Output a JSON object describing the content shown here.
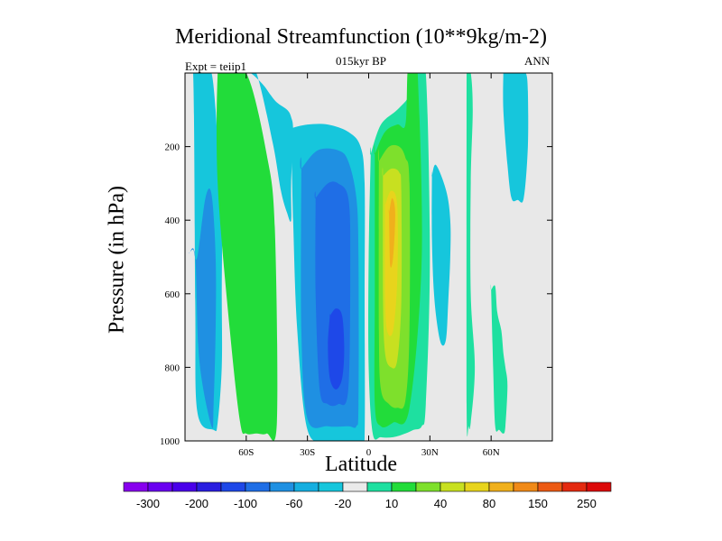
{
  "chart_data": {
    "type": "heatmap",
    "title": "Meridional Streamfunction (10**9kg/m-2)",
    "subtitle": "015kyr BP",
    "left_annotation": "Expt = teiip1",
    "right_annotation": "ANN",
    "xlabel": "Latitude",
    "ylabel": "Pressure (in hPa)",
    "xlim": [
      -90,
      90
    ],
    "ylim": [
      1000,
      0
    ],
    "x_ticks": [
      {
        "value": -60,
        "label": "60S"
      },
      {
        "value": -30,
        "label": "30S"
      },
      {
        "value": 0,
        "label": "0"
      },
      {
        "value": 30,
        "label": "30N"
      },
      {
        "value": 60,
        "label": "60N"
      }
    ],
    "y_ticks": [
      {
        "value": 200,
        "label": "200"
      },
      {
        "value": 400,
        "label": "400"
      },
      {
        "value": 600,
        "label": "600"
      },
      {
        "value": 800,
        "label": "800"
      },
      {
        "value": 1000,
        "label": "1000"
      }
    ],
    "colorbar": {
      "labels": [
        "-300",
        "-200",
        "-100",
        "-60",
        "-20",
        "10",
        "40",
        "80",
        "150",
        "250"
      ],
      "colors": [
        "#8800ee",
        "#6a00f0",
        "#4a00ea",
        "#2a1ee0",
        "#1e48e8",
        "#1f6ee6",
        "#1f90e2",
        "#15aee0",
        "#16c6dc",
        "#eaeaea",
        "#1ee0a0",
        "#22dc3a",
        "#7ee02c",
        "#c8e020",
        "#e8d41c",
        "#f0b01c",
        "#f08a18",
        "#ec5a14",
        "#e42a10",
        "#dc0a0a"
      ]
    },
    "background_color": "#e8e8e8",
    "contours": [
      {
        "level": "-20",
        "color": "#16c6dc",
        "lat": [
          -89,
          -86,
          -85,
          -84,
          -76,
          -74,
          -72,
          -72,
          -72,
          -74,
          -75,
          -77,
          -80,
          -86,
          -89
        ],
        "p": [
          0,
          0,
          620,
          920,
          970,
          950,
          800,
          600,
          400,
          200,
          100,
          0,
          0,
          0,
          0
        ]
      },
      {
        "level": "-60",
        "color": "#1f90e2",
        "lat": [
          -88,
          -85,
          -83,
          -77,
          -76,
          -75,
          -75,
          -77,
          -80,
          -84,
          -86,
          -88
        ],
        "p": [
          490,
          500,
          780,
          960,
          900,
          700,
          500,
          330,
          340,
          500,
          480,
          490
        ]
      },
      {
        "level": "40",
        "color": "#22dc3a",
        "lat": [
          -74,
          -72,
          -60,
          -50,
          -46,
          -45,
          -50,
          -55,
          -60,
          -63,
          -68,
          -74
        ],
        "p": [
          0,
          0,
          0,
          220,
          420,
          950,
          980,
          980,
          980,
          950,
          700,
          300
        ]
      },
      {
        "level": "-20",
        "color": "#16c6dc",
        "lat": [
          -66,
          -60,
          -55,
          -47,
          -43,
          -40,
          -38,
          -38,
          -37,
          -38,
          -40,
          -45,
          -48,
          -52,
          -58,
          -62,
          -66
        ],
        "p": [
          0,
          0,
          0,
          190,
          320,
          380,
          400,
          300,
          160,
          120,
          100,
          80,
          60,
          30,
          0,
          0,
          0
        ]
      },
      {
        "level": "-20",
        "color": "#16c6dc",
        "lat": [
          -38,
          -30,
          -20,
          -10,
          -4,
          -2,
          -2,
          -2,
          -4,
          -6,
          -10,
          -20,
          -30,
          -35,
          -37,
          -38
        ],
        "p": [
          150,
          140,
          140,
          160,
          200,
          300,
          600,
          990,
          1000,
          1000,
          1000,
          1000,
          970,
          700,
          400,
          150
        ]
      },
      {
        "level": "-60",
        "color": "#1f90e2",
        "lat": [
          -33,
          -25,
          -15,
          -10,
          -6,
          -5,
          -5,
          -6,
          -10,
          -20,
          -30,
          -33,
          -33
        ],
        "p": [
          260,
          210,
          210,
          240,
          340,
          500,
          900,
          960,
          960,
          960,
          940,
          700,
          260
        ]
      },
      {
        "level": "-100",
        "color": "#1f6ee6",
        "lat": [
          -26,
          -20,
          -15,
          -10,
          -9,
          -10,
          -15,
          -20,
          -24,
          -26,
          -26
        ],
        "p": [
          340,
          300,
          300,
          340,
          500,
          860,
          900,
          900,
          860,
          600,
          340
        ]
      },
      {
        "level": "-200",
        "color": "#1e48e8",
        "lat": [
          -19,
          -16,
          -13,
          -12,
          -13,
          -16,
          -19,
          -20,
          -19
        ],
        "p": [
          660,
          640,
          660,
          750,
          830,
          860,
          830,
          740,
          660
        ]
      },
      {
        "level": "10",
        "color": "#1ee0a0",
        "lat": [
          1,
          6,
          14,
          20,
          22,
          22,
          24,
          28,
          30,
          28,
          26,
          22,
          18,
          12,
          6,
          2,
          0,
          0,
          1
        ],
        "p": [
          220,
          140,
          100,
          60,
          0,
          0,
          0,
          0,
          500,
          900,
          960,
          970,
          980,
          990,
          990,
          980,
          800,
          500,
          220
        ]
      },
      {
        "level": "40",
        "color": "#22dc3a",
        "lat": [
          3,
          8,
          14,
          18,
          19,
          20,
          22,
          24,
          26,
          20,
          12,
          6,
          3,
          3,
          3
        ],
        "p": [
          220,
          160,
          140,
          140,
          0,
          0,
          0,
          0,
          500,
          910,
          950,
          960,
          900,
          600,
          220
        ]
      },
      {
        "level": "80",
        "color": "#7ee02c",
        "lat": [
          5,
          10,
          15,
          18,
          20,
          20,
          18,
          14,
          10,
          6,
          5,
          5
        ],
        "p": [
          240,
          200,
          200,
          230,
          300,
          700,
          890,
          910,
          900,
          860,
          700,
          240
        ]
      },
      {
        "level": "150",
        "color": "#c8e020",
        "lat": [
          7,
          11,
          15,
          16,
          16,
          14,
          11,
          8,
          7,
          7
        ],
        "p": [
          280,
          260,
          270,
          320,
          620,
          780,
          800,
          760,
          600,
          280
        ]
      },
      {
        "level": "250",
        "color": "#e8d41c",
        "lat": [
          8,
          11,
          14,
          14,
          12,
          9,
          8,
          8
        ],
        "p": [
          360,
          320,
          360,
          560,
          700,
          700,
          600,
          360
        ]
      },
      {
        "level": "250",
        "color": "#f0b01c",
        "lat": [
          10,
          11.5,
          13,
          12,
          10.5,
          10
        ],
        "p": [
          380,
          340,
          380,
          500,
          520,
          380
        ]
      },
      {
        "level": "-20",
        "color": "#16c6dc",
        "lat": [
          31,
          33,
          38,
          40,
          40,
          39,
          38,
          36,
          34,
          32,
          31,
          31
        ],
        "p": [
          280,
          250,
          320,
          400,
          500,
          620,
          720,
          740,
          700,
          600,
          450,
          280
        ]
      },
      {
        "level": "10",
        "color": "#1ee0a0",
        "lat": [
          48,
          50,
          51,
          50,
          50,
          52,
          50,
          49,
          48,
          48
        ],
        "p": [
          0,
          0,
          100,
          300,
          600,
          800,
          950,
          960,
          900,
          0
        ]
      },
      {
        "level": "10",
        "color": "#1ee0a0",
        "lat": [
          60,
          62,
          63,
          65,
          66,
          67,
          68,
          67,
          66,
          64,
          62,
          61,
          60
        ],
        "p": [
          590,
          580,
          650,
          700,
          760,
          800,
          850,
          960,
          980,
          970,
          960,
          800,
          590
        ]
      },
      {
        "level": "-20",
        "color": "#16c6dc",
        "lat": [
          66,
          70,
          74,
          77,
          78,
          78,
          76,
          73,
          70,
          68,
          66,
          66
        ],
        "p": [
          0,
          0,
          0,
          0,
          50,
          200,
          340,
          345,
          340,
          250,
          100,
          0
        ]
      }
    ]
  }
}
